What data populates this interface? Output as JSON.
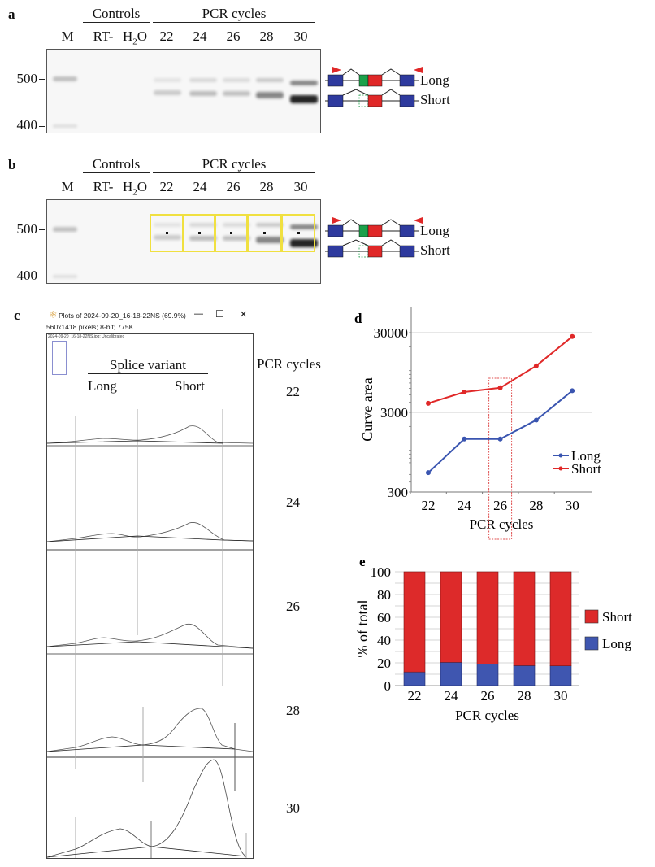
{
  "panel_a": {
    "label": "a",
    "controls_header": "Controls",
    "pcr_header": "PCR cycles",
    "lanes": [
      "M",
      "RT-",
      "H2O",
      "22",
      "24",
      "26",
      "28",
      "30"
    ],
    "h2o_main": "H",
    "h2o_sub": "2",
    "h2o_tail": "O",
    "size_markers": [
      "500",
      "400"
    ],
    "variant_labels": [
      "Long",
      "Short"
    ]
  },
  "panel_b": {
    "label": "b",
    "controls_header": "Controls",
    "pcr_header": "PCR cycles",
    "lanes": [
      "M",
      "RT-",
      "H2O",
      "22",
      "24",
      "26",
      "28",
      "30"
    ],
    "h2o_main": "H",
    "h2o_sub": "2",
    "h2o_tail": "O",
    "size_markers": [
      "500",
      "400"
    ],
    "variant_labels": [
      "Long",
      "Short"
    ]
  },
  "panel_c": {
    "label": "c",
    "window": {
      "title": "Plots of 2024-09-20_16-18-22NS (69.9%)",
      "info": "560x1418 pixels; 8-bit; 775K",
      "subinfo": "2024-09-20_16-18-22NS.jpg; Uncalibrated",
      "icon": "imagej-microscope-icon",
      "minimize": "—",
      "maximize": "☐",
      "close": "✕"
    },
    "splice_header": "Splice variant",
    "col_long": "Long",
    "col_short": "Short",
    "side_header": "PCR cycles",
    "cycles": [
      "22",
      "24",
      "26",
      "28",
      "30"
    ]
  },
  "colors": {
    "long": "#3a55b0",
    "short": "#e02828",
    "exon_blue": "#2e3a9e",
    "exon_green": "#1ca04a",
    "exon_red": "#e02828",
    "primer": "#e02828",
    "roi_yellow": "#f0e040"
  },
  "chart_data": [
    {
      "panel": "d",
      "type": "line",
      "title": "",
      "xlabel": "PCR cycles",
      "ylabel": "Curve area",
      "yscale": "log",
      "ylim": [
        300,
        30000
      ],
      "yticks": [
        "300",
        "3000",
        "30000"
      ],
      "x": [
        22,
        24,
        26,
        28,
        30
      ],
      "xticks": [
        "22",
        "24",
        "26",
        "28",
        "30"
      ],
      "grid": "horizontal major",
      "legend": "right",
      "highlight_x": 26,
      "series": [
        {
          "name": "Long",
          "color": "#3a55b0",
          "values": [
            525,
            1390,
            1390,
            2400,
            5600
          ]
        },
        {
          "name": "Short",
          "color": "#e02828",
          "values": [
            3900,
            5400,
            6100,
            11500,
            26800
          ]
        }
      ]
    },
    {
      "panel": "e",
      "type": "bar",
      "stacked": true,
      "title": "",
      "xlabel": "PCR cycles",
      "ylabel": "% of total",
      "ylim": [
        0,
        100
      ],
      "yticks": [
        "0",
        "20",
        "40",
        "60",
        "80",
        "100"
      ],
      "categories": [
        "22",
        "24",
        "26",
        "28",
        "30"
      ],
      "grid": "horizontal",
      "legend": "right",
      "series": [
        {
          "name": "Long",
          "color": "#3f56b0",
          "values": [
            12,
            20.5,
            18.8,
            17.6,
            17.4
          ]
        },
        {
          "name": "Short",
          "color": "#dd2a2a",
          "values": [
            88,
            79.5,
            81.2,
            82.4,
            82.6
          ]
        }
      ],
      "legend_order": [
        "Short",
        "Long"
      ]
    }
  ]
}
